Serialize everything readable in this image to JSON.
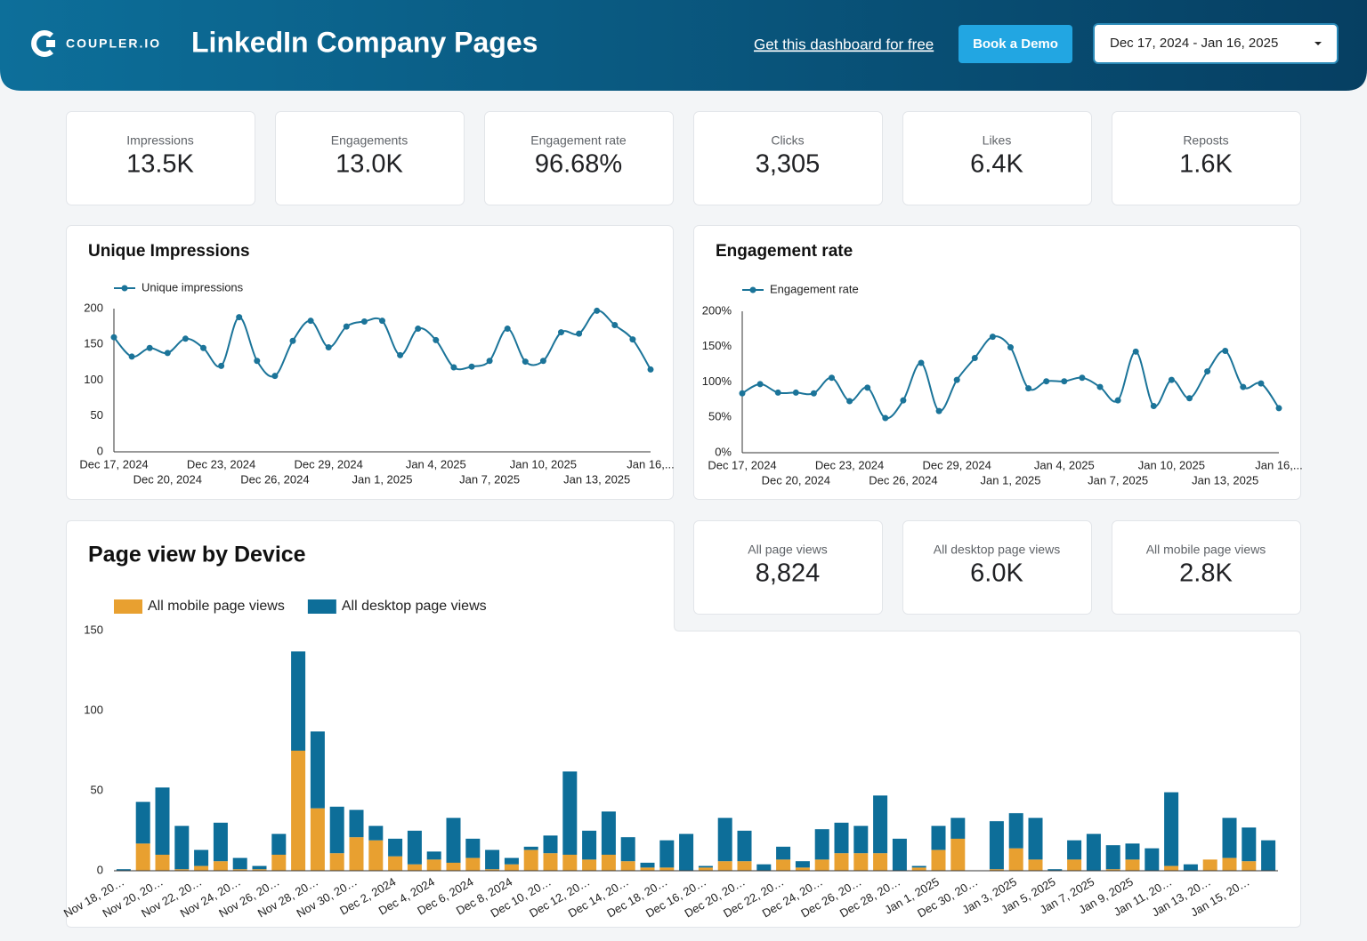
{
  "header": {
    "logo": "COUPLER.IO",
    "title": "LinkedIn Company Pages",
    "link": "Get this dashboard for free",
    "button": "Book a Demo",
    "date_range": "Dec 17, 2024 - Jan 16, 2025"
  },
  "kpis": [
    {
      "label": "Impressions",
      "value": "13.5K"
    },
    {
      "label": "Engagements",
      "value": "13.0K"
    },
    {
      "label": "Engagement rate",
      "value": "96.68%"
    },
    {
      "label": "Clicks",
      "value": "3,305"
    },
    {
      "label": "Likes",
      "value": "6.4K"
    },
    {
      "label": "Reposts",
      "value": "1.6K"
    }
  ],
  "kpis2": [
    {
      "label": "All page views",
      "value": "8,824"
    },
    {
      "label": "All desktop page views",
      "value": "6.0K"
    },
    {
      "label": "All mobile page views",
      "value": "2.8K"
    }
  ],
  "chart_data": [
    {
      "type": "line",
      "title": "Unique Impressions",
      "categories": [
        "Dec 17, 2024",
        null,
        null,
        "Dec 20, 2024",
        null,
        null,
        "Dec 23, 2024",
        null,
        null,
        "Dec 26, 2024",
        null,
        null,
        "Dec 29, 2024",
        null,
        null,
        "Jan 1, 2025",
        null,
        null,
        "Jan 4, 2025",
        null,
        null,
        "Jan 7, 2025",
        null,
        null,
        "Jan 10, 2025",
        null,
        null,
        "Jan 13, 2025",
        null,
        null,
        "Jan 16,..."
      ],
      "series": [
        {
          "name": "Unique impressions",
          "color": "#1b7499",
          "values": [
            160,
            133,
            145,
            138,
            158,
            145,
            120,
            188,
            127,
            106,
            155,
            183,
            146,
            175,
            182,
            183,
            135,
            172,
            156,
            118,
            119,
            127,
            172,
            126,
            127,
            167,
            165,
            197,
            177,
            157,
            115
          ]
        }
      ],
      "ylim": [
        0,
        200
      ],
      "yticks": [
        0,
        50,
        100,
        150,
        200
      ],
      "grid": false
    },
    {
      "type": "line",
      "title": "Engagement rate",
      "categories": [
        "Dec 17, 2024",
        null,
        null,
        "Dec 20, 2024",
        null,
        null,
        "Dec 23, 2024",
        null,
        null,
        "Dec 26, 2024",
        null,
        null,
        "Dec 29, 2024",
        null,
        null,
        "Jan 1, 2025",
        null,
        null,
        "Jan 4, 2025",
        null,
        null,
        "Jan 7, 2025",
        null,
        null,
        "Jan 10, 2025",
        null,
        null,
        "Jan 13, 2025",
        null,
        null,
        "Jan 16,..."
      ],
      "series": [
        {
          "name": "Engagement rate",
          "color": "#1b7499",
          "values": [
            84,
            97,
            85,
            85,
            84,
            106,
            73,
            92,
            49,
            74,
            127,
            59,
            103,
            134,
            164,
            149,
            91,
            101,
            101,
            106,
            93,
            74,
            143,
            66,
            103,
            77,
            115,
            144,
            93,
            98,
            63
          ]
        }
      ],
      "ylim": [
        0,
        200
      ],
      "yticks": [
        {
          "value": 0,
          "label": "0%"
        },
        {
          "value": 50,
          "label": "50%"
        },
        {
          "value": 100,
          "label": "100%"
        },
        {
          "value": 150,
          "label": "150%"
        },
        {
          "value": 200,
          "label": "200%"
        }
      ],
      "grid": false
    },
    {
      "type": "bar",
      "title": "Page view by Device",
      "stacked": true,
      "categories": [
        "Nov 18, 20…",
        null,
        "Nov 20, 20…",
        null,
        "Nov 22, 20…",
        null,
        "Nov 24, 20…",
        null,
        "Nov 26, 20…",
        null,
        "Nov 28, 20…",
        null,
        "Nov 30, 20…",
        null,
        "Dec 2, 2024",
        null,
        "Dec 4, 2024",
        null,
        "Dec 6, 2024",
        null,
        "Dec 8, 2024",
        null,
        "Dec 10, 20…",
        null,
        "Dec 12, 20…",
        null,
        "Dec 14, 20…",
        null,
        "Dec 18, 20…",
        null,
        "Dec 16, 20…",
        null,
        "Dec 20, 20…",
        null,
        "Dec 22, 20…",
        null,
        "Dec 24, 20…",
        null,
        "Dec 26, 20…",
        null,
        "Dec 28, 20…",
        null,
        "Jan 1, 2025",
        null,
        "Dec 30, 20…",
        null,
        "Jan 3, 2025",
        null,
        "Jan 5, 2025",
        null,
        "Jan 7, 2025",
        null,
        "Jan 9, 2025",
        null,
        "Jan 11, 20…",
        null,
        "Jan 13, 20…",
        null,
        "Jan 15, 20…",
        null
      ],
      "series": [
        {
          "name": "All mobile page views",
          "color": "#e8a030",
          "values": [
            0,
            17,
            10,
            1,
            3,
            6,
            1,
            1,
            10,
            75,
            39,
            11,
            21,
            19,
            9,
            4,
            7,
            5,
            8,
            1,
            4,
            13,
            11,
            10,
            7,
            10,
            6,
            2,
            2,
            0,
            2,
            6,
            6,
            0,
            7,
            2,
            7,
            11,
            11,
            11,
            0,
            2,
            13,
            20,
            0,
            1,
            14,
            7,
            0,
            7,
            0,
            1,
            7,
            0,
            3,
            0,
            7,
            8,
            6,
            0
          ]
        },
        {
          "name": "All desktop page views",
          "color": "#0d6e99",
          "values": [
            1,
            26,
            42,
            27,
            10,
            24,
            7,
            2,
            13,
            62,
            48,
            29,
            17,
            9,
            11,
            21,
            5,
            28,
            12,
            12,
            4,
            2,
            11,
            52,
            18,
            27,
            15,
            3,
            17,
            23,
            1,
            27,
            19,
            4,
            8,
            4,
            19,
            19,
            17,
            36,
            20,
            1,
            15,
            13,
            0,
            30,
            22,
            26,
            1,
            12,
            23,
            15,
            10,
            14,
            46,
            4,
            0,
            25,
            21,
            19
          ]
        }
      ],
      "ylim": [
        0,
        150
      ],
      "yticks": [
        0,
        50,
        100,
        150
      ],
      "grid": false
    }
  ]
}
